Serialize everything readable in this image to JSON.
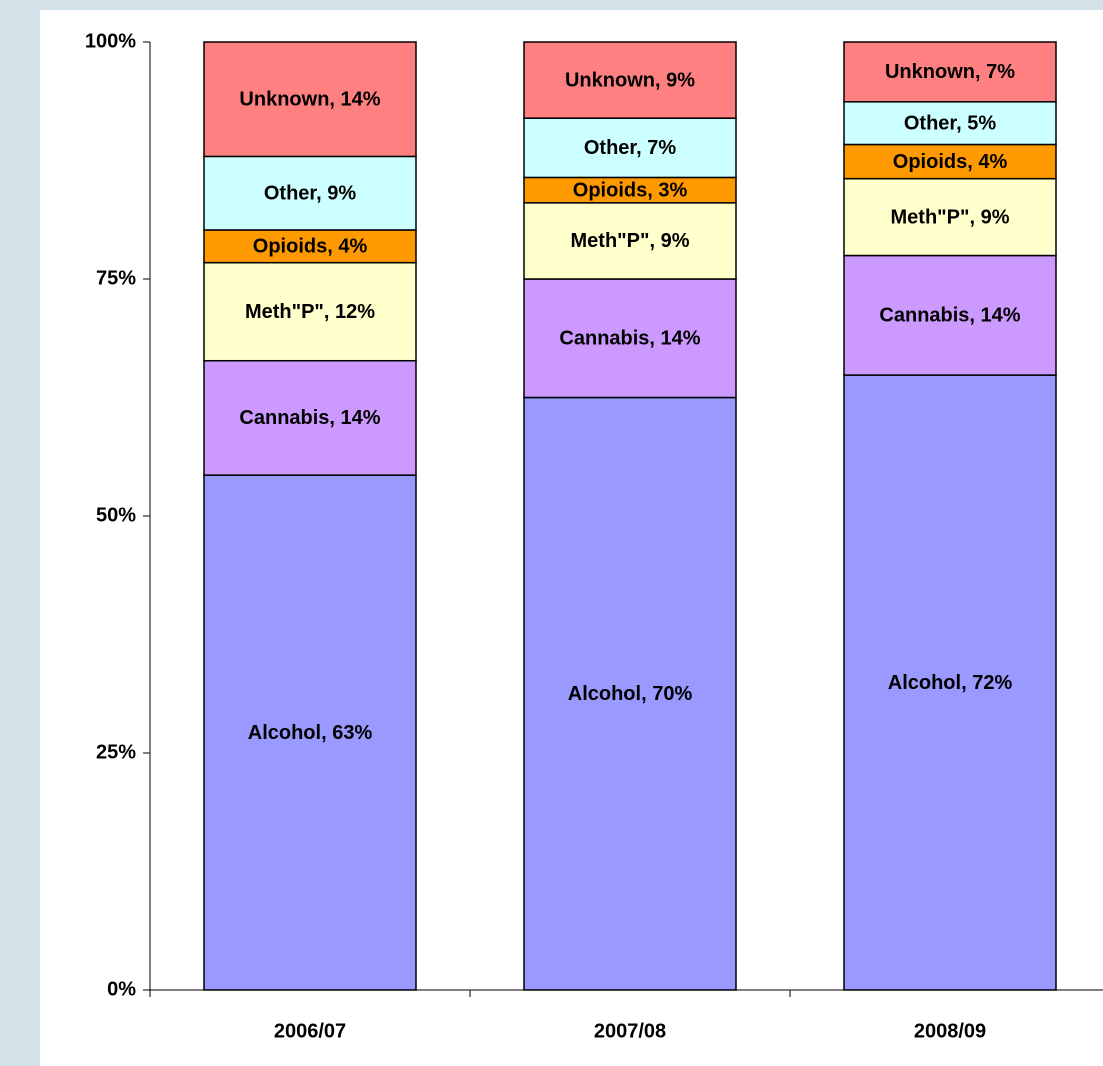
{
  "chart_data": {
    "type": "bar",
    "stacking": "percent",
    "categories": [
      "2006/07",
      "2007/08",
      "2008/09"
    ],
    "ylim": [
      0,
      100
    ],
    "yticks": [
      {
        "value": 0,
        "label": "0%"
      },
      {
        "value": 25,
        "label": "25%"
      },
      {
        "value": 50,
        "label": "50%"
      },
      {
        "value": 75,
        "label": "75%"
      },
      {
        "value": 100,
        "label": "100%"
      }
    ],
    "series": [
      {
        "color": "#9999ff",
        "values": [
          63,
          70,
          72
        ],
        "value_labels": [
          "Alcohol, 63%",
          "Alcohol, 70%",
          "Alcohol, 72%"
        ]
      },
      {
        "color": "#cc99ff",
        "values": [
          14,
          14,
          14
        ],
        "value_labels": [
          "Cannabis, 14%",
          "Cannabis, 14%",
          "Cannabis, 14%"
        ]
      },
      {
        "color": "#ffffcc",
        "values": [
          12,
          9,
          9
        ],
        "value_labels": [
          "Meth\"P\", 12%",
          "Meth\"P\", 9%",
          "Meth\"P\", 9%"
        ]
      },
      {
        "color": "#ff9900",
        "values": [
          4,
          3,
          4
        ],
        "value_labels": [
          "Opioids, 4%",
          "Opioids, 3%",
          "Opioids, 4%"
        ]
      },
      {
        "color": "#ccffff",
        "values": [
          9,
          7,
          5
        ],
        "value_labels": [
          "Other, 9%",
          "Other, 7%",
          "Other, 5%"
        ]
      },
      {
        "color": "#ff8080",
        "values": [
          14,
          9,
          7
        ],
        "value_labels": [
          "Unknown, 14%",
          "Unknown, 9%",
          "Unknown, 7%"
        ]
      }
    ]
  }
}
